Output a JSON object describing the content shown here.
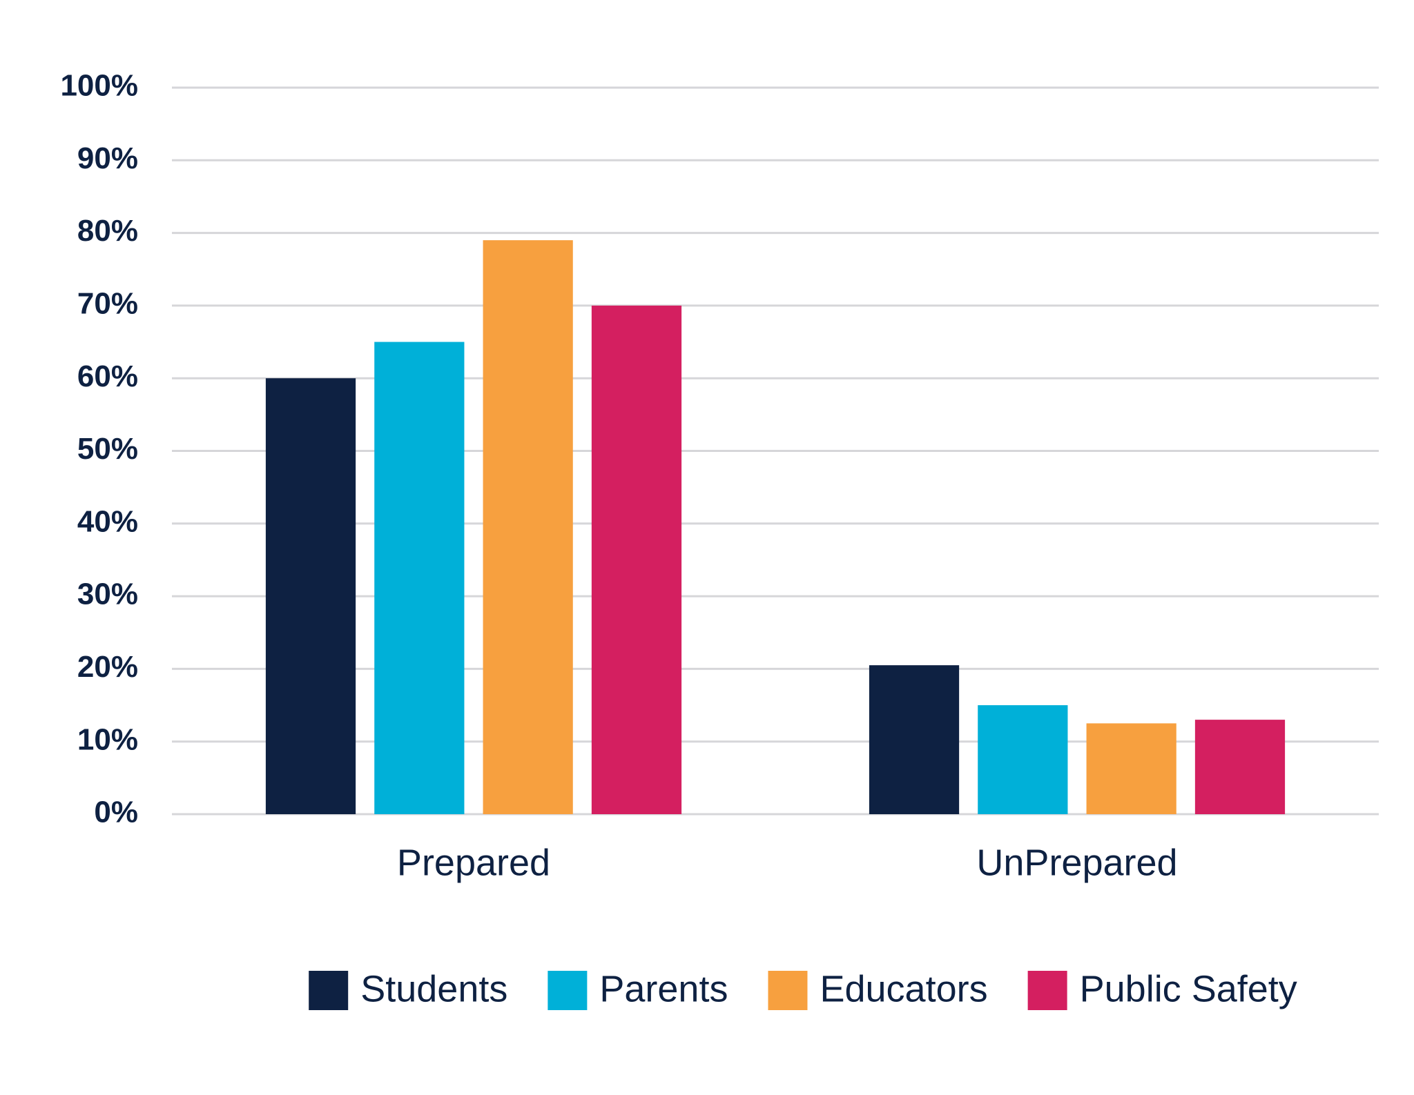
{
  "chart_data": {
    "type": "bar",
    "categories": [
      "Prepared",
      "UnPrepared"
    ],
    "series": [
      {
        "name": "Students",
        "color": "#0e2142",
        "values": [
          60,
          20.5
        ]
      },
      {
        "name": "Parents",
        "color": "#00b0d8",
        "values": [
          65,
          15
        ]
      },
      {
        "name": "Educators",
        "color": "#f7a03f",
        "values": [
          79,
          12.5
        ]
      },
      {
        "name": "Public Safety",
        "color": "#d41f60",
        "values": [
          70,
          13
        ]
      }
    ],
    "ylim": [
      0,
      100
    ],
    "yticks": [
      {
        "value": 0,
        "label": "0%"
      },
      {
        "value": 10,
        "label": "10%"
      },
      {
        "value": 20,
        "label": "20%"
      },
      {
        "value": 30,
        "label": "30%"
      },
      {
        "value": 40,
        "label": "40%"
      },
      {
        "value": 50,
        "label": "50%"
      },
      {
        "value": 60,
        "label": "60%"
      },
      {
        "value": 70,
        "label": "70%"
      },
      {
        "value": 80,
        "label": "80%"
      },
      {
        "value": 90,
        "label": "90%"
      },
      {
        "value": 100,
        "label": "100%"
      }
    ],
    "grid": true,
    "legend": "bottom"
  }
}
